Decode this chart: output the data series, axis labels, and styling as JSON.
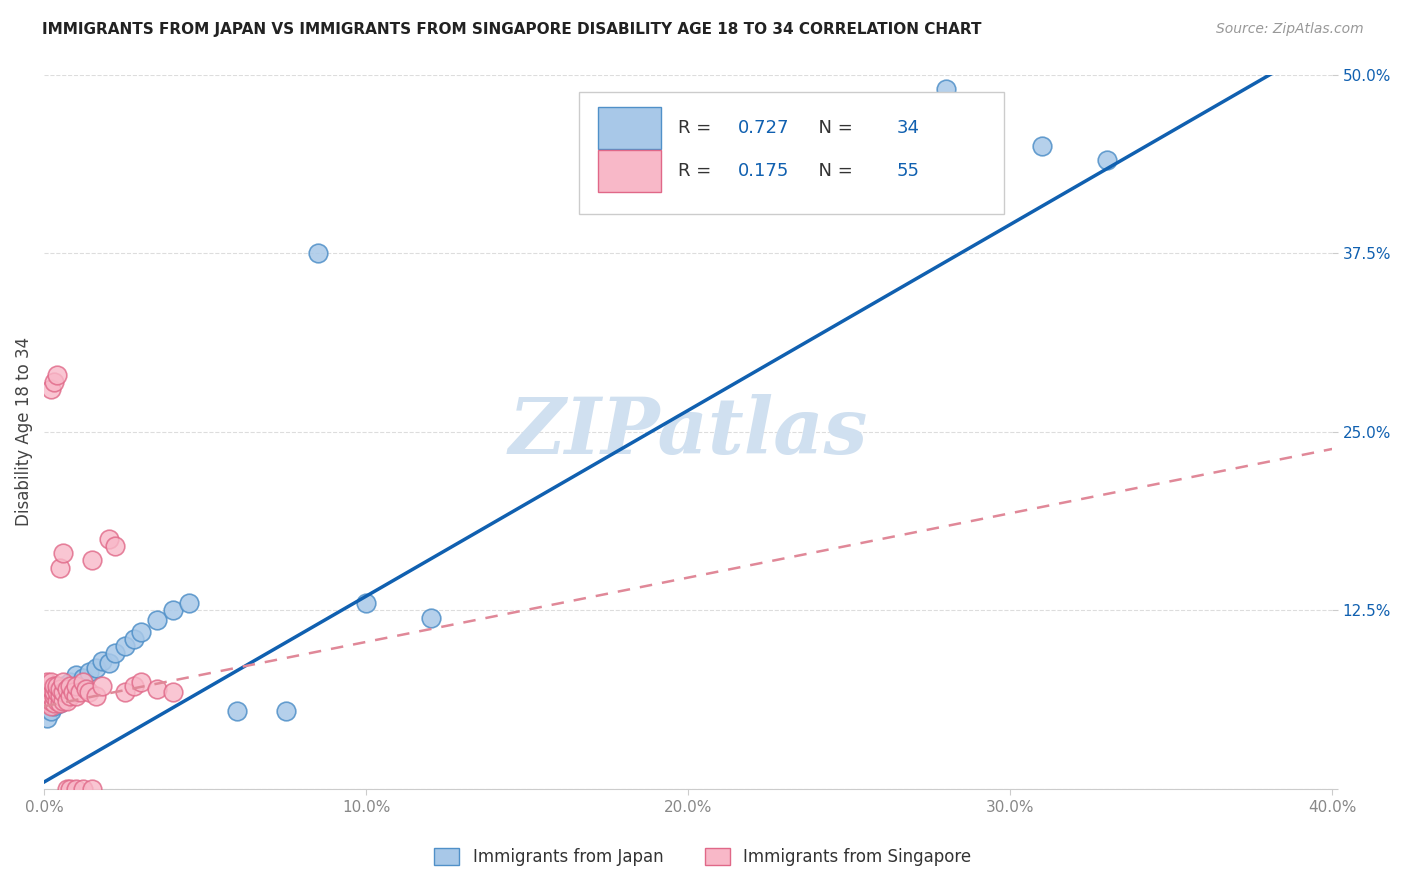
{
  "title": "IMMIGRANTS FROM JAPAN VS IMMIGRANTS FROM SINGAPORE DISABILITY AGE 18 TO 34 CORRELATION CHART",
  "source": "Source: ZipAtlas.com",
  "ylabel": "Disability Age 18 to 34",
  "xlim": [
    0.0,
    0.4
  ],
  "ylim": [
    0.0,
    0.5
  ],
  "xticks": [
    0.0,
    0.1,
    0.2,
    0.3,
    0.4
  ],
  "xticklabels": [
    "0.0%",
    "10.0%",
    "20.0%",
    "30.0%",
    "40.0%"
  ],
  "yticks": [
    0.0,
    0.125,
    0.25,
    0.375,
    0.5
  ],
  "yticklabels": [
    "",
    "12.5%",
    "25.0%",
    "37.5%",
    "50.0%"
  ],
  "japan_color": "#a8c8e8",
  "singapore_color": "#f8b8c8",
  "japan_edge_color": "#5090c8",
  "singapore_edge_color": "#e06888",
  "japan_R": 0.727,
  "japan_N": 34,
  "singapore_R": 0.175,
  "singapore_N": 55,
  "japan_line_color": "#1060b0",
  "singapore_line_color": "#e08898",
  "tick_color": "#1060b0",
  "watermark": "ZIPatlas",
  "watermark_color": "#d0e0f0",
  "japan_points_x": [
    0.001,
    0.002,
    0.002,
    0.003,
    0.003,
    0.004,
    0.005,
    0.005,
    0.006,
    0.006,
    0.007,
    0.008,
    0.009,
    0.01,
    0.012,
    0.014,
    0.016,
    0.018,
    0.02,
    0.022,
    0.025,
    0.028,
    0.03,
    0.035,
    0.04,
    0.045,
    0.06,
    0.075,
    0.085,
    0.1,
    0.12,
    0.28,
    0.31,
    0.33
  ],
  "japan_points_y": [
    0.05,
    0.055,
    0.06,
    0.058,
    0.065,
    0.062,
    0.06,
    0.068,
    0.065,
    0.072,
    0.068,
    0.075,
    0.07,
    0.08,
    0.078,
    0.082,
    0.085,
    0.09,
    0.088,
    0.095,
    0.1,
    0.105,
    0.11,
    0.118,
    0.125,
    0.13,
    0.055,
    0.055,
    0.375,
    0.13,
    0.12,
    0.49,
    0.45,
    0.44
  ],
  "singapore_points_x": [
    0.001,
    0.001,
    0.001,
    0.001,
    0.001,
    0.001,
    0.002,
    0.002,
    0.002,
    0.002,
    0.002,
    0.003,
    0.003,
    0.003,
    0.003,
    0.004,
    0.004,
    0.004,
    0.005,
    0.005,
    0.005,
    0.006,
    0.006,
    0.006,
    0.007,
    0.007,
    0.008,
    0.008,
    0.009,
    0.01,
    0.01,
    0.011,
    0.012,
    0.013,
    0.014,
    0.015,
    0.016,
    0.018,
    0.02,
    0.022,
    0.025,
    0.028,
    0.03,
    0.035,
    0.04,
    0.002,
    0.003,
    0.004,
    0.005,
    0.006,
    0.007,
    0.008,
    0.01,
    0.012,
    0.015
  ],
  "singapore_points_y": [
    0.06,
    0.062,
    0.065,
    0.068,
    0.07,
    0.075,
    0.058,
    0.062,
    0.065,
    0.07,
    0.075,
    0.06,
    0.065,
    0.068,
    0.072,
    0.062,
    0.068,
    0.072,
    0.06,
    0.065,
    0.07,
    0.062,
    0.068,
    0.075,
    0.062,
    0.07,
    0.065,
    0.072,
    0.068,
    0.065,
    0.072,
    0.068,
    0.075,
    0.07,
    0.068,
    0.16,
    0.065,
    0.072,
    0.175,
    0.17,
    0.068,
    0.072,
    0.075,
    0.07,
    0.068,
    0.28,
    0.285,
    0.29,
    0.155,
    0.165,
    0.0,
    0.0,
    0.0,
    0.0,
    0.0
  ],
  "japan_line_slope": 1.3,
  "japan_line_intercept": 0.005,
  "singapore_line_slope": 0.45,
  "singapore_line_intercept": 0.058
}
